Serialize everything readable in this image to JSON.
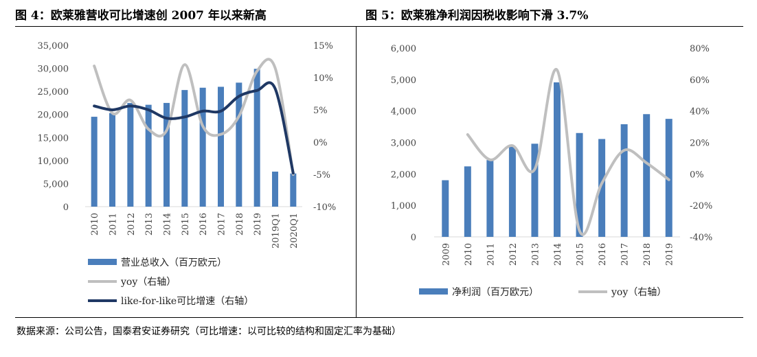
{
  "figures": {
    "left_title": "图 4：欧莱雅营收可比增速创 2007 年以来新高",
    "right_title": "图 5：欧莱雅净利润因税收影响下滑 3.7%",
    "source": "数据来源：公司公告，国泰君安证券研究（可比增速：以可比较的结构和固定汇率为基础）"
  },
  "chart_data": [
    {
      "type": "bar",
      "categories": [
        "2010",
        "2011",
        "2012",
        "2013",
        "2014",
        "2015",
        "2016",
        "2017",
        "2018",
        "2019",
        "2019Q1",
        "2020Q1"
      ],
      "y_left": {
        "range": [
          0,
          35000
        ],
        "ticks": [
          0,
          5000,
          10000,
          15000,
          20000,
          25000,
          30000,
          35000
        ],
        "tick_labels": [
          "0",
          "5,000",
          "10,000",
          "15,000",
          "20,000",
          "25,000",
          "30,000",
          "35,000"
        ]
      },
      "y_right": {
        "range": [
          -10,
          15
        ],
        "ticks": [
          -10,
          -5,
          0,
          5,
          10,
          15
        ],
        "tick_labels": [
          "-10%",
          "-5%",
          "0%",
          "5%",
          "10%",
          "15%"
        ]
      },
      "series": [
        {
          "name": "营业总收入（百万欧元）",
          "type": "bar",
          "axis": "left",
          "color": "#4a7ebb",
          "values": [
            19500,
            20300,
            22500,
            22100,
            22500,
            25300,
            25800,
            26000,
            26900,
            29900,
            7600,
            7200
          ]
        },
        {
          "name": "yoy（右轴）",
          "type": "line",
          "axis": "right",
          "color": "#bfbfbf",
          "values": [
            11.8,
            4.5,
            6.5,
            2.0,
            1.8,
            12.0,
            2.5,
            1.2,
            4.0,
            11.0,
            11.5,
            -5.0
          ]
        },
        {
          "name": "like-for-like可比增速（右轴）",
          "type": "line",
          "axis": "right",
          "color": "#1f3864",
          "values": [
            5.6,
            5.0,
            5.6,
            5.0,
            3.7,
            3.9,
            4.8,
            4.8,
            7.1,
            8.0,
            8.3,
            -4.8
          ]
        }
      ],
      "legend_position": "bottom"
    },
    {
      "type": "bar",
      "categories": [
        "2009",
        "2010",
        "2011",
        "2012",
        "2013",
        "2014",
        "2015",
        "2016",
        "2017",
        "2018",
        "2019"
      ],
      "y_left": {
        "range": [
          0,
          6000
        ],
        "ticks": [
          0,
          1000,
          2000,
          3000,
          4000,
          5000,
          6000
        ],
        "tick_labels": [
          "0",
          "1,000",
          "2,000",
          "3,000",
          "4,000",
          "5,000",
          "6,000"
        ]
      },
      "y_right": {
        "range": [
          -40,
          80
        ],
        "ticks": [
          -40,
          -20,
          0,
          20,
          40,
          60,
          80
        ],
        "tick_labels": [
          "-40%",
          "-20%",
          "0%",
          "20%",
          "40%",
          "60%",
          "80%"
        ]
      },
      "series": [
        {
          "name": "净利润（百万欧元）",
          "type": "bar",
          "axis": "left",
          "color": "#4a7ebb",
          "values": [
            1800,
            2240,
            2440,
            2870,
            2960,
            4910,
            3300,
            3110,
            3580,
            3900,
            3750
          ]
        },
        {
          "name": "yoy（右轴）",
          "type": "line",
          "axis": "right",
          "color": "#bfbfbf",
          "values": [
            null,
            25,
            9,
            18,
            3,
            66,
            -36,
            -6,
            15,
            7,
            -3.7
          ]
        }
      ],
      "legend_position": "bottom"
    }
  ]
}
